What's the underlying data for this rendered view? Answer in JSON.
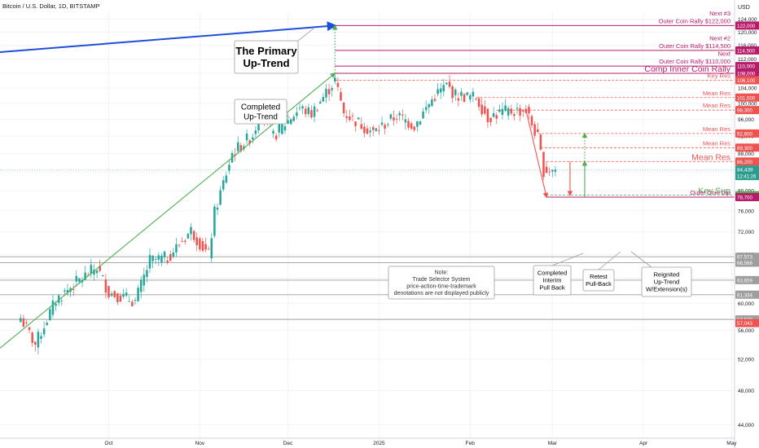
{
  "header": {
    "symbol": "Bitcoin / U.S. Dollar, 1D, BITSTAMP",
    "currency": "USD"
  },
  "colors": {
    "up": "#26a69a",
    "down": "#ef5350",
    "resistance": "#b71c6b",
    "mean_res": "#ef5350",
    "support_green": "#4caf50",
    "trend_blue": "#1e4fd8",
    "grey_line": "#9e9e9e",
    "price_tag": "#2a9d8f"
  },
  "chart_data": {
    "type": "candlestick",
    "y_axis": {
      "scale": "log",
      "range": [
        42500,
        126500
      ],
      "ticks": [
        "124,000",
        "120,000",
        "116,000",
        "112,000",
        "108,000",
        "104,000",
        "100,000",
        "96,000",
        "92,000",
        "88,000",
        "84,000",
        "80,000",
        "76,000",
        "72,000",
        "68,000",
        "64,000",
        "60,000",
        "56,000",
        "52,000",
        "48,000",
        "44,000"
      ]
    },
    "x_axis": {
      "labels": [
        {
          "label": "Oct",
          "date": "2024-10-01"
        },
        {
          "label": "Nov",
          "date": "2024-11-01"
        },
        {
          "label": "Dec",
          "date": "2024-12-01"
        },
        {
          "label": "2025",
          "date": "2025-01-01"
        },
        {
          "label": "Feb",
          "date": "2025-02-01"
        },
        {
          "label": "Mar",
          "date": "2025-03-01"
        },
        {
          "label": "Apr",
          "date": "2025-04-01"
        },
        {
          "label": "May",
          "date": "2025-05-01"
        }
      ]
    },
    "candle_anchors": [
      {
        "date": "2024-09-01",
        "close": 57800
      },
      {
        "date": "2024-09-06",
        "close": 54000
      },
      {
        "date": "2024-09-13",
        "close": 60500
      },
      {
        "date": "2024-09-20",
        "close": 63300
      },
      {
        "date": "2024-09-27",
        "close": 65800
      },
      {
        "date": "2024-10-01",
        "close": 61700
      },
      {
        "date": "2024-10-10",
        "close": 60300
      },
      {
        "date": "2024-10-15",
        "close": 66900
      },
      {
        "date": "2024-10-21",
        "close": 67400
      },
      {
        "date": "2024-10-29",
        "close": 72300
      },
      {
        "date": "2024-11-04",
        "close": 67800
      },
      {
        "date": "2024-11-06",
        "close": 75600
      },
      {
        "date": "2024-11-12",
        "close": 88000
      },
      {
        "date": "2024-11-19",
        "close": 92300
      },
      {
        "date": "2024-11-22",
        "close": 98300
      },
      {
        "date": "2024-11-26",
        "close": 91900
      },
      {
        "date": "2024-12-05",
        "close": 98800
      },
      {
        "date": "2024-12-09",
        "close": 97400
      },
      {
        "date": "2024-12-17",
        "close": 106100
      },
      {
        "date": "2024-12-20",
        "close": 97700
      },
      {
        "date": "2024-12-30",
        "close": 92800
      },
      {
        "date": "2025-01-07",
        "close": 96900
      },
      {
        "date": "2025-01-13",
        "close": 94500
      },
      {
        "date": "2025-01-20",
        "close": 102000
      },
      {
        "date": "2025-01-24",
        "close": 104700
      },
      {
        "date": "2025-01-27",
        "close": 102100
      },
      {
        "date": "2025-02-03",
        "close": 101500
      },
      {
        "date": "2025-02-07",
        "close": 96500
      },
      {
        "date": "2025-02-12",
        "close": 97800
      },
      {
        "date": "2025-02-20",
        "close": 98300
      },
      {
        "date": "2025-02-24",
        "close": 91500
      },
      {
        "date": "2025-02-26",
        "close": 84300
      },
      {
        "date": "2025-02-28",
        "close": 84400
      },
      {
        "date": "2025-03-02",
        "close": 84439
      }
    ],
    "levels": [
      {
        "price": 122000,
        "tag": "122,000",
        "label": "Next #3\nOuter Coin Rally $122,000",
        "color": "resistance",
        "style": "solid",
        "x_start_date": "2024-12-17"
      },
      {
        "price": 114500,
        "tag": "114,500",
        "label": "Next #2\nOuter Coin Rally $114,500",
        "color": "resistance",
        "style": "solid",
        "x_start_date": "2024-12-17"
      },
      {
        "price": 110000,
        "tag": "110,000",
        "label": "Next\nOuter Coin Rally $110,000",
        "color": "resistance",
        "style": "solid",
        "x_start_date": "2024-12-17"
      },
      {
        "price": 108000,
        "tag": "108,000",
        "label": "Comp Inner Coin Rally",
        "color": "resistance",
        "style": "solid",
        "x_start_date": "2024-12-17",
        "large": true
      },
      {
        "price": 106100,
        "tag": "106,100",
        "label": "Key Res",
        "color": "mean_res",
        "style": "dashed",
        "x_start_date": "2024-12-17"
      },
      {
        "price": 101500,
        "tag": "101,500",
        "label": "Mean Res",
        "color": "mean_res",
        "style": "dashed",
        "x_start_date": "2025-02-03"
      },
      {
        "price": 98300,
        "tag": "98,300",
        "label": "Mean Res",
        "color": "mean_res",
        "style": "dashed",
        "x_start_date": "2025-02-10"
      },
      {
        "price": 92600,
        "tag": "92,600",
        "label": "Mean Res",
        "color": "mean_res",
        "style": "dashed",
        "x_start_date": "2025-02-24"
      },
      {
        "price": 89300,
        "tag": "89,300",
        "label": "Mean Res",
        "color": "mean_res",
        "style": "dashed",
        "x_start_date": "2025-02-25"
      },
      {
        "price": 86200,
        "tag": "86,200",
        "label": "Mean Res",
        "color": "mean_res",
        "style": "dashed",
        "x_start_date": "2025-02-27",
        "large": true
      },
      {
        "price": 79085,
        "tag": "79,085",
        "label": "Key Sup",
        "color": "support_green",
        "style": "dashed",
        "x_start_date": "2025-02-27",
        "large": true
      },
      {
        "price": 78700,
        "tag": "78,700",
        "label": "Outer Coin Dip",
        "color": "resistance",
        "style": "solid",
        "x_start_date": "2025-02-27"
      },
      {
        "price": 67573,
        "tag": "67,573",
        "label": "",
        "color": "grey_line",
        "style": "solid",
        "x_start_date": "2024-08-25"
      },
      {
        "price": 66566,
        "tag": "66,566",
        "label": "",
        "color": "grey_line",
        "style": "solid",
        "x_start_date": "2024-08-25"
      },
      {
        "price": 63659,
        "tag": "63,659",
        "label": "",
        "color": "grey_line",
        "style": "solid",
        "x_start_date": "2024-08-25"
      },
      {
        "price": 61334,
        "tag": "61,334",
        "label": "",
        "color": "grey_line",
        "style": "solid",
        "x_start_date": "2024-08-25"
      },
      {
        "price": 57578,
        "tag": "57,578",
        "label": "",
        "color": "grey_line",
        "style": "solid",
        "x_start_date": "2024-08-25"
      },
      {
        "price": 57043,
        "tag": "57,043",
        "label": "",
        "color": "down",
        "style": "none",
        "x_start_date": "2024-08-25"
      }
    ],
    "current_price": {
      "price": 84439,
      "tag": "84,439",
      "timer": "12:41:26"
    },
    "trendlines": [
      {
        "name": "primary-up-trend",
        "color": "trend_blue",
        "from": {
          "date": "2024-08-25",
          "price": 114000
        },
        "to": {
          "date": "2024-12-17",
          "price": 122000
        },
        "arrow": true
      },
      {
        "name": "completed-up-trend",
        "color": "support_green",
        "from": {
          "date": "2024-08-25",
          "price": 53500
        },
        "to": {
          "date": "2024-12-17",
          "price": 108000
        },
        "arrow": true
      },
      {
        "name": "interim-pullback",
        "color": "down",
        "from": {
          "date": "2025-02-20",
          "price": 98300
        },
        "to": {
          "date": "2025-02-27",
          "price": 78700
        },
        "arrow": true
      },
      {
        "name": "retest-pullback",
        "color": "down",
        "from": {
          "date": "2025-03-07",
          "price": 86200
        },
        "to": {
          "date": "2025-03-07",
          "price": 79085
        },
        "arrow": true
      },
      {
        "name": "reignited-up-trend",
        "color": "support_green",
        "from": {
          "date": "2025-03-12",
          "price": 78700
        },
        "to": {
          "date": "2025-03-12",
          "price": 86200
        },
        "arrow": true
      },
      {
        "name": "extension-1",
        "color": "support_green",
        "from": {
          "date": "2025-03-12",
          "price": 86200
        },
        "to": {
          "date": "2025-03-12",
          "price": 92600
        },
        "dotted": true,
        "arrow": true
      },
      {
        "name": "extension-primary",
        "color": "support_green",
        "from": {
          "date": "2024-12-17",
          "price": 108000
        },
        "to": {
          "date": "2024-12-17",
          "price": 122000
        },
        "dotted": true,
        "arrow": true
      }
    ],
    "annotations": [
      {
        "name": "primary-up-trend-label",
        "text": "The Primary\nUp-Trend",
        "color": "trend_blue"
      },
      {
        "name": "completed-up-trend-label",
        "text": "Completed\nUp-Trend",
        "color": "support_green"
      },
      {
        "name": "note-label",
        "text": "Note:\nTrade Selector System\nprice-action-time-trademark\ndenotations are not displayed publicly",
        "color": "#333333"
      },
      {
        "name": "interim-pullback-label",
        "text": "Completed\nInterim\nPull Back",
        "color": "down"
      },
      {
        "name": "retest-pullback-label",
        "text": "Retest\nPull-Back",
        "color": "down"
      },
      {
        "name": "reignited-label",
        "text": "Reignited\nUp-Trend\nW/Extension(s)",
        "color": "support_green"
      }
    ]
  }
}
